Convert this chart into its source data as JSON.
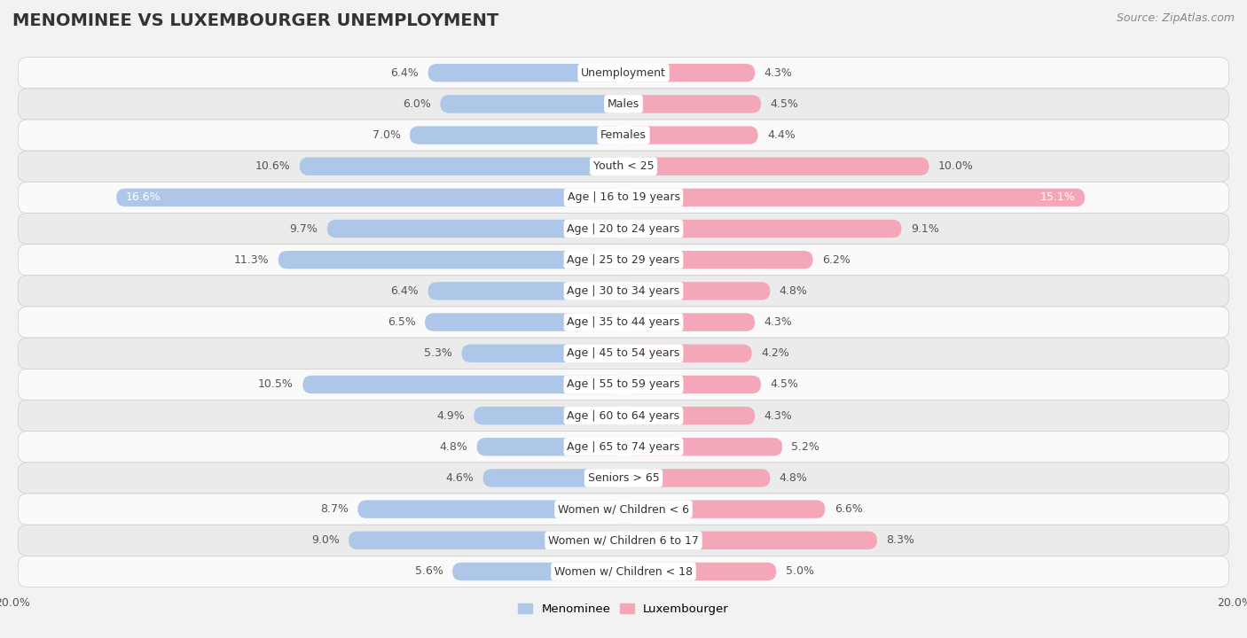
{
  "title": "MENOMINEE VS LUXEMBOURGER UNEMPLOYMENT",
  "source": "Source: ZipAtlas.com",
  "categories": [
    "Unemployment",
    "Males",
    "Females",
    "Youth < 25",
    "Age | 16 to 19 years",
    "Age | 20 to 24 years",
    "Age | 25 to 29 years",
    "Age | 30 to 34 years",
    "Age | 35 to 44 years",
    "Age | 45 to 54 years",
    "Age | 55 to 59 years",
    "Age | 60 to 64 years",
    "Age | 65 to 74 years",
    "Seniors > 65",
    "Women w/ Children < 6",
    "Women w/ Children 6 to 17",
    "Women w/ Children < 18"
  ],
  "menominee": [
    6.4,
    6.0,
    7.0,
    10.6,
    16.6,
    9.7,
    11.3,
    6.4,
    6.5,
    5.3,
    10.5,
    4.9,
    4.8,
    4.6,
    8.7,
    9.0,
    5.6
  ],
  "luxembourger": [
    4.3,
    4.5,
    4.4,
    10.0,
    15.1,
    9.1,
    6.2,
    4.8,
    4.3,
    4.2,
    4.5,
    4.3,
    5.2,
    4.8,
    6.6,
    8.3,
    5.0
  ],
  "menominee_color": "#aec6e8",
  "luxembourger_color": "#f4a7b9",
  "bar_height": 0.58,
  "xlim": 20.0,
  "background_color": "#f2f2f2",
  "row_color_light": "#fafafa",
  "row_color_dark": "#ebebeb",
  "title_fontsize": 14,
  "label_fontsize": 9,
  "category_fontsize": 9,
  "source_fontsize": 9
}
